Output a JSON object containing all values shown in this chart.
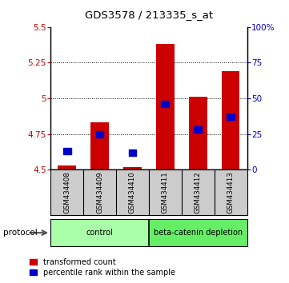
{
  "title": "GDS3578 / 213335_s_at",
  "samples": [
    "GSM434408",
    "GSM434409",
    "GSM434410",
    "GSM434411",
    "GSM434412",
    "GSM434413"
  ],
  "transformed_count": [
    4.53,
    4.83,
    4.52,
    5.38,
    5.01,
    5.19
  ],
  "percentile_rank": [
    13,
    25,
    12,
    46,
    28,
    37
  ],
  "ylim_left": [
    4.5,
    5.5
  ],
  "ylim_right": [
    0,
    100
  ],
  "yticks_left": [
    4.5,
    4.75,
    5.0,
    5.25,
    5.5
  ],
  "ytick_labels_left": [
    "4.5",
    "4.75",
    "5",
    "5.25",
    "5.5"
  ],
  "yticks_right": [
    0,
    25,
    50,
    75,
    100
  ],
  "ytick_labels_right": [
    "0",
    "25",
    "50",
    "75",
    "100%"
  ],
  "bar_bottom": 4.5,
  "bar_width": 0.55,
  "bar_color_red": "#cc0000",
  "bar_color_blue": "#0000cc",
  "groups": [
    {
      "label": "control",
      "samples": [
        0,
        1,
        2
      ],
      "color": "#aaffaa"
    },
    {
      "label": "beta-catenin depletion",
      "samples": [
        3,
        4,
        5
      ],
      "color": "#66ee66"
    }
  ],
  "protocol_label": "protocol",
  "legend_red": "transformed count",
  "legend_blue": "percentile rank within the sample",
  "background_color": "#ffffff",
  "tick_label_color_left": "#cc0000",
  "tick_label_color_right": "#0000cc",
  "sample_bg_color": "#cccccc"
}
